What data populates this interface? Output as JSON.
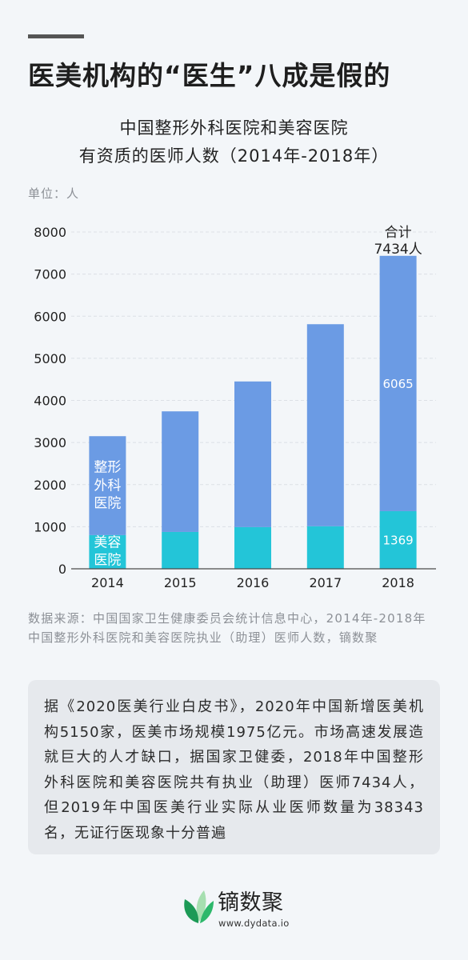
{
  "header": {
    "title": "医美机构的“医生”八成是假的"
  },
  "chart_data": {
    "type": "bar",
    "stacked": true,
    "title": [
      "中国整形外科医院和美容医院",
      "有资质的医师人数（2014年-2018年）"
    ],
    "unit_label": "单位：人",
    "categories": [
      "2014",
      "2015",
      "2016",
      "2017",
      "2018"
    ],
    "series": [
      {
        "name": "美容医院",
        "color": "#23c5d8",
        "values": [
          800,
          875,
          990,
          1010,
          1369
        ]
      },
      {
        "name": "整形外科医院",
        "color": "#6b9be4",
        "values": [
          2350,
          2865,
          3460,
          4800,
          6065
        ]
      }
    ],
    "ylim": [
      0,
      8000
    ],
    "yticks": [
      0,
      1000,
      2000,
      3000,
      4000,
      5000,
      6000,
      7000,
      8000
    ],
    "grid": true,
    "grid_style": "dashed",
    "legend_placement": "inside-first-bar",
    "data_labels": [
      {
        "category": "2018",
        "series": "整形外科医院",
        "text": "6065"
      },
      {
        "category": "2018",
        "series": "美容医院",
        "text": "1369"
      }
    ],
    "total_annotation": {
      "category": "2018",
      "lines": [
        "合计",
        "7434人"
      ]
    }
  },
  "source": {
    "lines": [
      "数据来源：中国国家卫生健康委员会统计信息中心，2014年-2018年",
      "中国整形外科医院和美容医院执业（助理）医师人数，镝数聚"
    ]
  },
  "summary": {
    "lines": [
      "据《2020医美行业白皮书》，2020年中国新增医美机",
      "构5150家，医美市场规模1975亿元。市场高速发展造",
      "就巨大的人才缺口，据国家卫健委，2018年中国整形",
      "外科医院和美容医院共有执业（助理）医师7434人，",
      "但2019年中国医美行业实际从业医师数量为38343",
      "名，无证行医现象十分普遍"
    ]
  },
  "footer": {
    "brand": "镝数聚",
    "url": "www.dydata.io",
    "icon": "green-leaves-logo-icon"
  }
}
